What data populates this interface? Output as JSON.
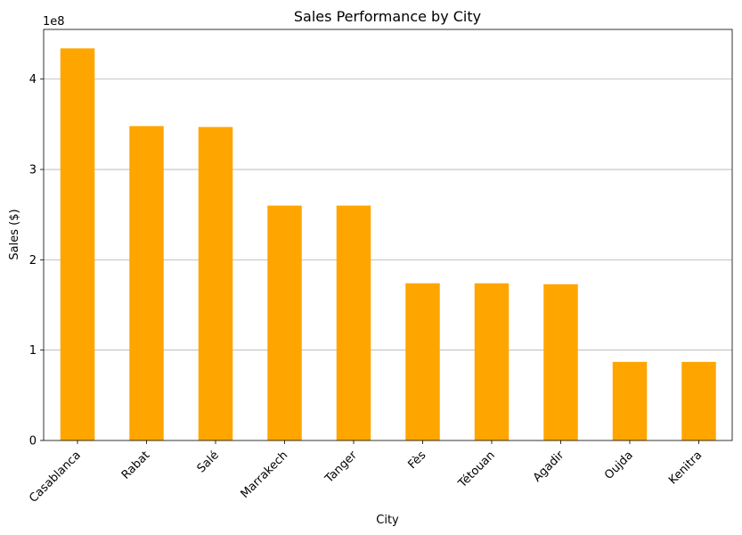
{
  "chart_data": {
    "type": "bar",
    "title": "Sales Performance by City",
    "xlabel": "City",
    "ylabel": "Sales ($)",
    "y_offset_label": "1e8",
    "scale_factor": 100000000,
    "categories": [
      "Casablanca",
      "Rabat",
      "Salé",
      "Marrakech",
      "Tanger",
      "Fès",
      "Tétouan",
      "Agadir",
      "Oujda",
      "Kenitra"
    ],
    "values": [
      434000000,
      348000000,
      347000000,
      260000000,
      260000000,
      174000000,
      174000000,
      173000000,
      87000000,
      87000000
    ],
    "ylim": [
      0,
      455000000
    ],
    "yticks": [
      0,
      1,
      2,
      3,
      4
    ],
    "bar_color": "#FFA500",
    "grid": "y-major",
    "legend": "none"
  }
}
